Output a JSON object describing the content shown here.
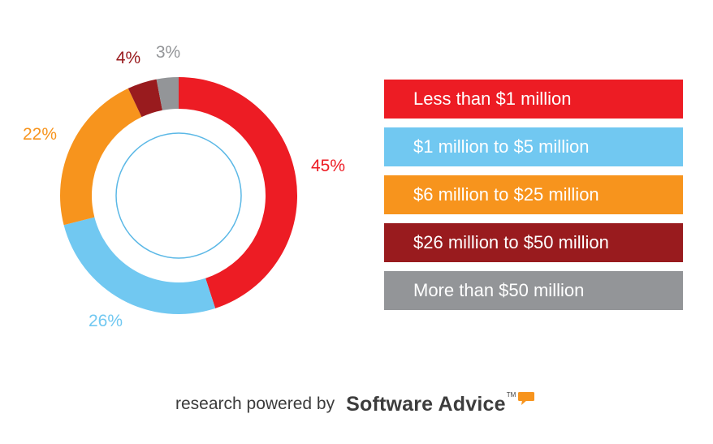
{
  "chart_data": {
    "type": "pie",
    "donut": true,
    "slices": [
      {
        "label": "Less than $1 million",
        "value": 45,
        "display": "45%",
        "color": "#ed1c24"
      },
      {
        "label": "$1 million to $5 million",
        "value": 26,
        "display": "26%",
        "color": "#71c8f1"
      },
      {
        "label": "$6 million to $25 million",
        "value": 22,
        "display": "22%",
        "color": "#f7941d"
      },
      {
        "label": "$26 million to $50 million",
        "value": 4,
        "display": "4%",
        "color": "#991b1e"
      },
      {
        "label": "More than $50 million",
        "value": 3,
        "display": "3%",
        "color": "#939598"
      }
    ],
    "legend_position": "right"
  },
  "footer": {
    "text": "research powered by",
    "brand": "Software Advice",
    "trademark": "TM"
  }
}
